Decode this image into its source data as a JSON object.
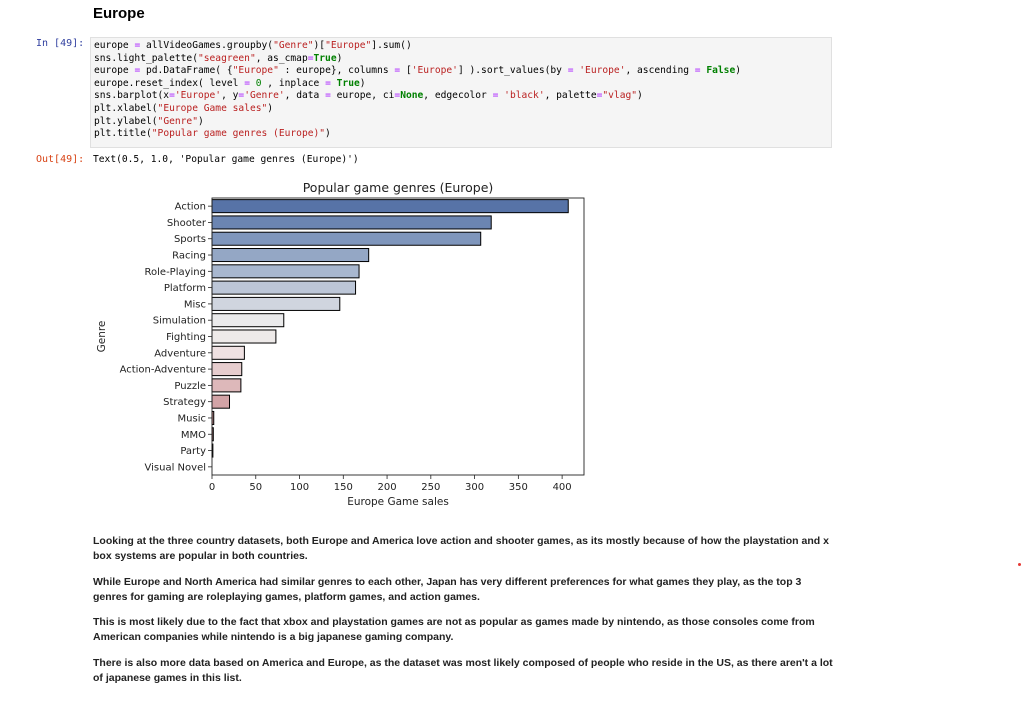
{
  "section": {
    "heading": "Europe"
  },
  "input_cell": {
    "prompt": "In [49]:",
    "code_lines": [
      [
        [
          "europe ",
          ""
        ],
        [
          "=",
          "o"
        ],
        [
          " allVideoGames.groupby(",
          ""
        ],
        [
          "\"Genre\"",
          "s"
        ],
        [
          ")[",
          ""
        ],
        [
          "\"Europe\"",
          "s"
        ],
        [
          "].sum()",
          ""
        ]
      ],
      [
        [
          "sns.light_palette(",
          ""
        ],
        [
          "\"seagreen\"",
          "s"
        ],
        [
          ", as_cmap",
          ""
        ],
        [
          "=",
          "o"
        ],
        [
          "True",
          "k"
        ],
        [
          ")",
          ""
        ]
      ],
      [
        [
          "europe ",
          ""
        ],
        [
          "=",
          "o"
        ],
        [
          " pd.DataFrame( {",
          ""
        ],
        [
          "\"Europe\"",
          "s"
        ],
        [
          " : europe}, columns ",
          ""
        ],
        [
          "=",
          "o"
        ],
        [
          " [",
          ""
        ],
        [
          "'Europe'",
          "s"
        ],
        [
          "] ).sort_values(by ",
          ""
        ],
        [
          "=",
          "o"
        ],
        [
          " ",
          ""
        ],
        [
          "'Europe'",
          "s"
        ],
        [
          ", ascending ",
          ""
        ],
        [
          "=",
          "o"
        ],
        [
          " ",
          ""
        ],
        [
          "False",
          "k"
        ],
        [
          ")",
          ""
        ]
      ],
      [
        [
          "europe.reset_index( level ",
          ""
        ],
        [
          "=",
          "o"
        ],
        [
          " ",
          ""
        ],
        [
          "0",
          "n"
        ],
        [
          " , inplace ",
          ""
        ],
        [
          "=",
          "o"
        ],
        [
          " ",
          ""
        ],
        [
          "True",
          "k"
        ],
        [
          ")",
          ""
        ]
      ],
      [
        [
          "sns.barplot(x",
          ""
        ],
        [
          "=",
          "o"
        ],
        [
          "'Europe'",
          "s"
        ],
        [
          ", y",
          ""
        ],
        [
          "=",
          "o"
        ],
        [
          "'Genre'",
          "s"
        ],
        [
          ", data ",
          ""
        ],
        [
          "=",
          "o"
        ],
        [
          " europe, ci",
          ""
        ],
        [
          "=",
          "o"
        ],
        [
          "None",
          "k"
        ],
        [
          ", edgecolor ",
          ""
        ],
        [
          "=",
          "o"
        ],
        [
          " ",
          ""
        ],
        [
          "'black'",
          "s"
        ],
        [
          ", palette",
          ""
        ],
        [
          "=",
          "o"
        ],
        [
          "\"vlag\"",
          "s"
        ],
        [
          ")",
          ""
        ]
      ],
      [
        [
          "plt.xlabel(",
          ""
        ],
        [
          "\"Europe Game sales\"",
          "s"
        ],
        [
          ")",
          ""
        ]
      ],
      [
        [
          "plt.ylabel(",
          ""
        ],
        [
          "\"Genre\"",
          "s"
        ],
        [
          ")",
          ""
        ]
      ],
      [
        [
          "plt.title(",
          ""
        ],
        [
          "\"Popular game genres (Europe)\"",
          "s"
        ],
        [
          ")",
          ""
        ]
      ]
    ]
  },
  "output_cell": {
    "prompt": "Out[49]:",
    "text": "Text(0.5, 1.0, 'Popular game genres (Europe)')"
  },
  "chart_data": {
    "type": "bar",
    "orientation": "horizontal",
    "title": "Popular game genres (Europe)",
    "xlabel": "Europe Game sales",
    "ylabel": "Genre",
    "xlim": [
      0,
      425
    ],
    "xticks": [
      0,
      50,
      100,
      150,
      200,
      250,
      300,
      350,
      400
    ],
    "categories": [
      "Action",
      "Shooter",
      "Sports",
      "Racing",
      "Role-Playing",
      "Platform",
      "Misc",
      "Simulation",
      "Fighting",
      "Adventure",
      "Action-Adventure",
      "Puzzle",
      "Strategy",
      "Music",
      "MMO",
      "Party",
      "Visual Novel"
    ],
    "values": [
      407,
      319,
      307,
      179,
      168,
      164,
      146,
      82,
      73,
      37,
      34,
      33,
      20,
      2,
      1.5,
      1,
      0
    ],
    "colors": [
      "#5773a7",
      "#6b85b2",
      "#7f96bc",
      "#94a7c5",
      "#a8b7cf",
      "#bcc6d7",
      "#d0d5df",
      "#eaeaeb",
      "#eeeae9",
      "#efe1e2",
      "#e6cdce",
      "#ddb8ba",
      "#d2a3a6",
      "#c58d91",
      "#b8787c",
      "#ab6368",
      "#9d4f54"
    ],
    "edgecolor": "black",
    "grid": false
  },
  "paragraphs": [
    "Looking at the three country datasets, both Europe and America love action and shooter games, as its mostly because of how the playstation and x box systems are popular in both countries.",
    "While Europe and North America had similar genres to each other, Japan has very different preferences for what games they play, as the top 3 genres for gaming are roleplaying games, platform games, and action games.",
    "This is most likely due to the fact that xbox and playstation games are not as popular as games made by nintendo, as those consoles come from American companies while nintendo is a big japanese gaming company.",
    "There is also more data based on America and Europe, as the dataset was most likely composed of people who reside in the US, as there aren't a lot of japanese games in this list."
  ]
}
